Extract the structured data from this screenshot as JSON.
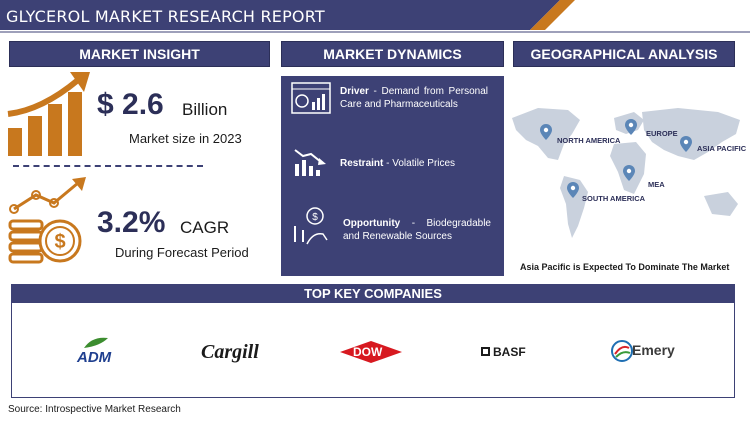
{
  "header": {
    "title": "GLYCEROL MARKET RESEARCH REPORT"
  },
  "insight": {
    "heading": "MARKET INSIGHT",
    "size_value": "$ 2.6",
    "size_unit": "Billion",
    "size_caption": "Market size in 2023",
    "cagr_value": "3.2%",
    "cagr_unit": "CAGR",
    "cagr_caption": "During Forecast Period"
  },
  "dynamics": {
    "heading": "MARKET DYNAMICS",
    "driver_label": "Driver",
    "driver_text": " - Demand from Personal Care and Pharmaceuticals",
    "restraint_label": "Restraint",
    "restraint_text": " - Volatile Prices",
    "opportunity_label": "Opportunity",
    "opportunity_text": " - Biodegradable and Renewable Sources"
  },
  "geo": {
    "heading": "GEOGRAPHICAL ANALYSIS",
    "regions": [
      "NORTH AMERICA",
      "EUROPE",
      "ASIA PACIFIC",
      "MEA",
      "SOUTH AMERICA"
    ],
    "caption": "Asia Pacific is Expected To Dominate The Market"
  },
  "companies": {
    "heading": "TOP KEY COMPANIES",
    "names": [
      "ADM",
      "Cargill",
      "DOW",
      "BASF",
      "Emery"
    ]
  },
  "source": "Source: Introspective Market Research",
  "colors": {
    "navy": "#3d4175",
    "orange": "#c8781e",
    "pin_blue": "#5b86b7"
  }
}
